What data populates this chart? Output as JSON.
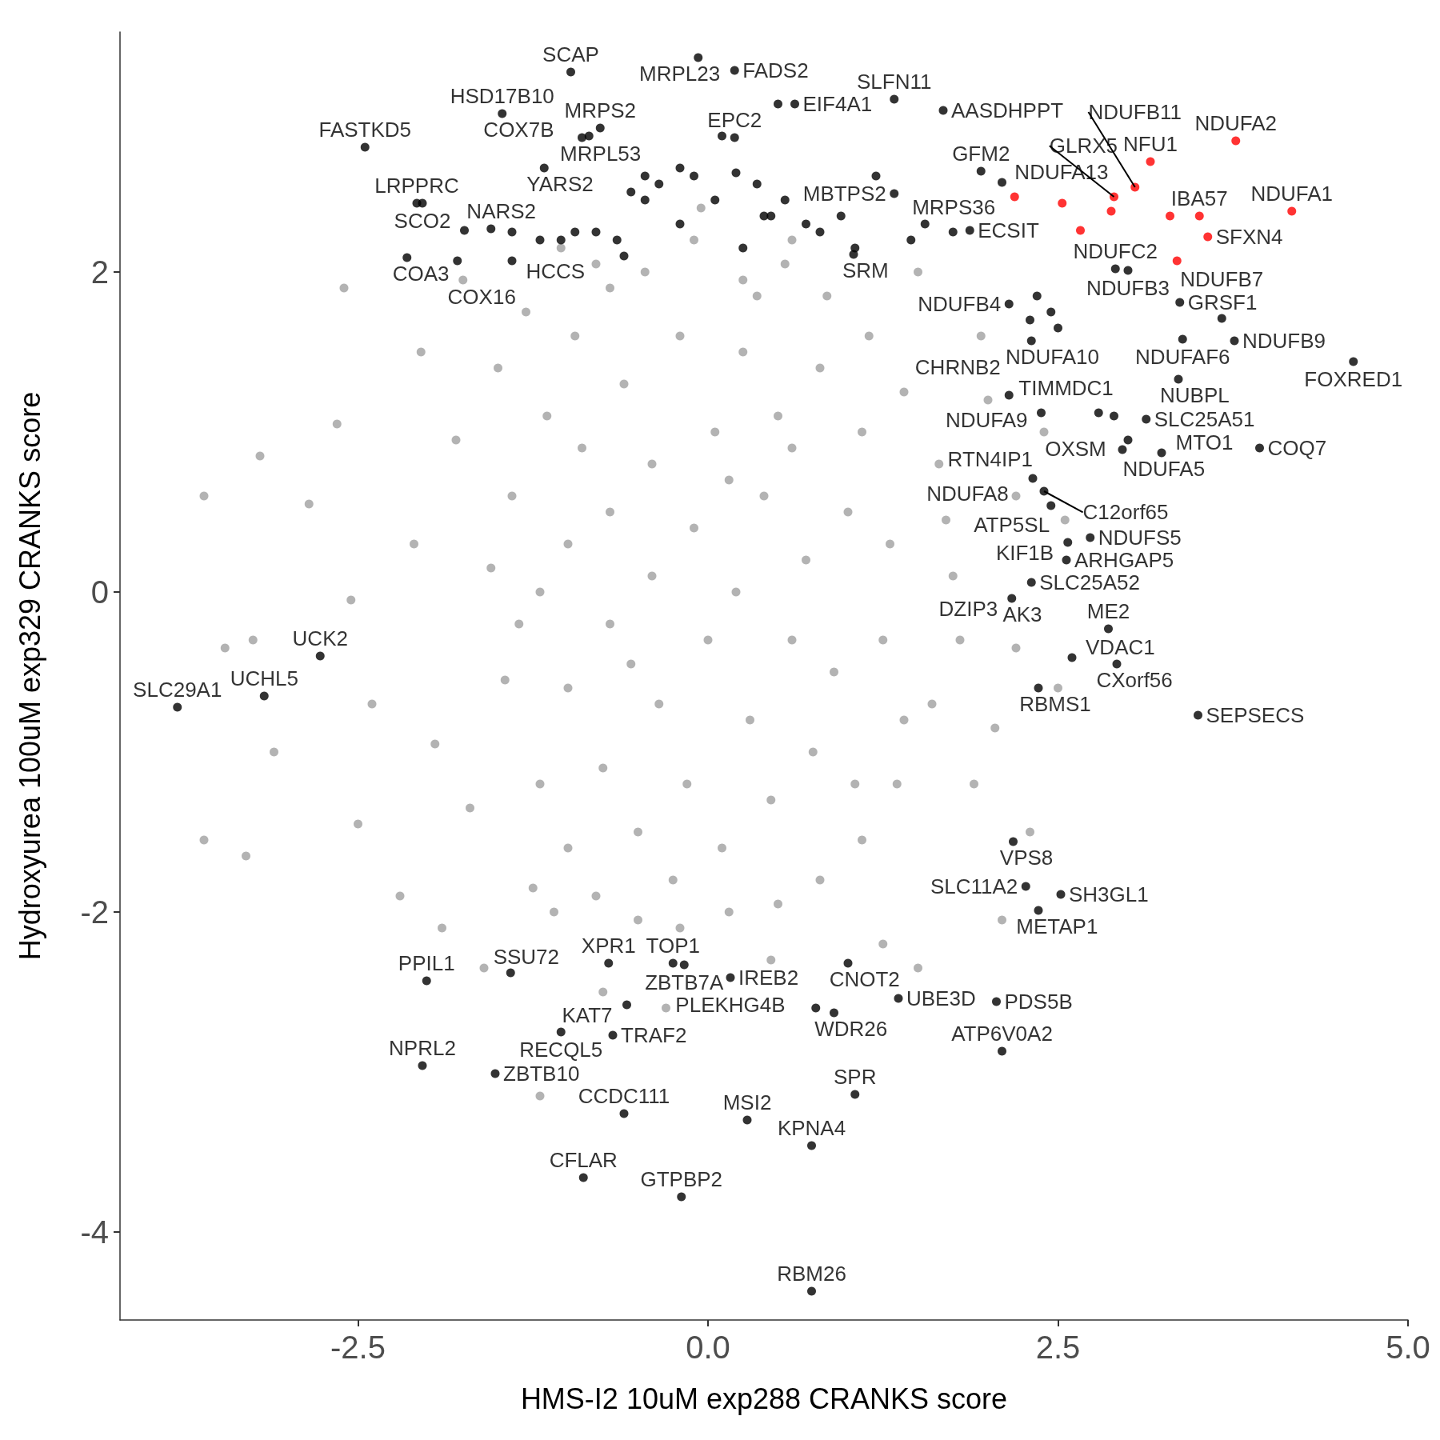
{
  "chart_data": {
    "type": "scatter",
    "xlabel": "HMS-I2 10uM exp288 CRANKS score",
    "ylabel": "Hydroxyurea 100uM exp329 CRANKS score",
    "xlim": [
      -4.2,
      5.0
    ],
    "ylim": [
      -4.55,
      3.5
    ],
    "xticks": [
      -2.5,
      {
        "value": 0,
        "label": "0.0"
      },
      2.5,
      {
        "value": 5,
        "label": "5.0"
      }
    ],
    "yticks": [
      -4,
      -2,
      0,
      2
    ],
    "grid": false,
    "marker": "circle",
    "series": [
      {
        "color": "#a0a0a0",
        "x": [
          -3.45,
          -3.25,
          -3.6,
          -3.6,
          -3.3,
          -3.1,
          -3.2,
          -2.6,
          -2.85,
          -2.65,
          -2.4,
          -2.55,
          -2.2,
          -2.5,
          -2.1,
          -2.05,
          -1.95,
          -1.9,
          -1.8,
          -1.7,
          -1.75,
          -1.6,
          -1.55,
          -1.5,
          -1.45,
          -1.2,
          -1.25,
          -1.3,
          -1.1,
          -1.05,
          -1.4,
          -1.35,
          -1.2,
          -1.15,
          -1.0,
          -0.95,
          -0.8,
          -0.7,
          -0.5,
          -0.45,
          -0.2,
          -0.1,
          0.15,
          0.25,
          0.5,
          0.55,
          0.8,
          0.85,
          1.1,
          1.15,
          1.35,
          1.4,
          1.6,
          1.65,
          1.75,
          1.8,
          1.7,
          -1.0,
          -1.0,
          -0.9,
          -0.75,
          -0.7,
          -0.7,
          -0.6,
          -0.5,
          -0.4,
          -0.4,
          -0.35,
          -0.2,
          -0.15,
          -0.1,
          0.0,
          0.05,
          0.1,
          0.2,
          0.25,
          0.3,
          0.4,
          0.45,
          0.5,
          0.6,
          0.7,
          0.75,
          0.8,
          0.9,
          1.0,
          1.05,
          1.1,
          1.25,
          1.3,
          1.4,
          -1.2,
          -0.55,
          0.15,
          0.6,
          -0.25,
          0.35,
          1.9,
          2.05,
          2.0,
          2.1,
          1.95,
          2.4,
          2.3,
          1.5,
          1.25,
          0.45,
          -0.3,
          -0.75,
          2.55,
          2.2,
          -0.05,
          -0.8,
          0.6,
          1.5,
          2.2,
          2.5
        ],
        "values": [
          -0.35,
          -0.3,
          0.6,
          -1.55,
          -1.65,
          -1.0,
          0.85,
          1.9,
          0.55,
          1.05,
          -0.7,
          -0.05,
          -1.9,
          -1.45,
          0.3,
          1.5,
          -0.95,
          -2.1,
          0.95,
          -1.35,
          1.95,
          -2.35,
          0.15,
          1.4,
          -0.55,
          -3.15,
          -1.85,
          1.75,
          -2.0,
          2.15,
          0.6,
          -0.2,
          -1.2,
          1.1,
          -1.6,
          1.6,
          -1.9,
          1.9,
          -2.05,
          2.0,
          -2.1,
          2.2,
          -2.0,
          1.95,
          -1.95,
          2.05,
          -1.8,
          1.85,
          -1.55,
          1.6,
          -1.2,
          1.25,
          -0.7,
          0.8,
          0.1,
          -0.3,
          0.45,
          0.3,
          -0.6,
          0.9,
          -1.1,
          0.5,
          -0.2,
          1.3,
          -1.5,
          0.1,
          0.8,
          -0.7,
          1.6,
          -1.2,
          0.4,
          -0.3,
          1.0,
          -1.6,
          0.0,
          1.5,
          -0.8,
          0.6,
          -1.3,
          1.1,
          -0.3,
          0.2,
          -1.0,
          1.4,
          -0.5,
          0.5,
          -1.2,
          1.0,
          -0.3,
          0.3,
          -0.8,
          0.0,
          -0.45,
          0.7,
          0.9,
          -1.8,
          1.85,
          -1.2,
          -0.85,
          1.2,
          -2.05,
          1.6,
          1.0,
          -1.5,
          -2.35,
          -2.2,
          -2.3,
          -2.6,
          -2.5,
          0.45,
          0.6,
          2.4,
          2.05,
          2.2,
          2.0,
          -0.35,
          -0.6
        ]
      },
      {
        "color": "#000000",
        "x": [
          -3.79,
          -3.17,
          -2.77,
          -2.45,
          -2.08,
          -2.04,
          -2.15,
          -1.79,
          -1.74,
          -1.4,
          -1.47,
          -0.98,
          -0.07,
          0.19,
          -0.9,
          -1.17,
          -0.77,
          0.62,
          1.33,
          0.19,
          1.95,
          1.68,
          2.1,
          1.33,
          1.87,
          1.04,
          2.15,
          2.91,
          3.0,
          3.37,
          3.67,
          3.39,
          3.76,
          4.61,
          3.36,
          2.38,
          2.79,
          2.31,
          2.15,
          2.96,
          3.24,
          3.94,
          2.32,
          2.4,
          2.45,
          2.73,
          2.57,
          2.56,
          2.31,
          2.17,
          2.86,
          2.6,
          2.92,
          2.36,
          3.5,
          2.18,
          2.27,
          2.52,
          2.36,
          -0.25,
          -0.17,
          -0.71,
          1.0,
          0.16,
          -2.01,
          -1.41,
          -0.58,
          1.36,
          2.06,
          -1.05,
          -0.68,
          0.77,
          0.9,
          -2.04,
          -1.52,
          2.1,
          -0.6,
          1.05,
          0.74,
          0.28,
          -0.89,
          -0.19,
          0.74,
          -1.55,
          -1.4,
          -1.2,
          -1.05,
          -0.95,
          -0.8,
          -0.65,
          -0.55,
          -0.45,
          -0.35,
          -0.2,
          -0.1,
          0.05,
          0.2,
          0.35,
          0.45,
          0.55,
          0.7,
          0.8,
          0.95,
          1.05,
          1.2,
          1.45,
          1.55,
          1.75,
          -0.85,
          -0.45,
          0.1,
          0.5,
          -0.2,
          0.25,
          -0.6,
          0.4,
          2.35,
          2.45,
          2.5,
          2.3,
          2.9,
          3.0,
          3.13
        ],
        "values": [
          -0.72,
          -0.65,
          -0.4,
          2.78,
          2.43,
          2.43,
          2.09,
          2.07,
          2.26,
          2.07,
          2.99,
          3.25,
          3.34,
          3.26,
          2.84,
          2.65,
          2.9,
          3.05,
          3.08,
          2.84,
          2.63,
          3.01,
          2.56,
          2.49,
          2.26,
          2.11,
          1.8,
          2.02,
          2.01,
          1.81,
          1.71,
          1.58,
          1.57,
          1.44,
          1.33,
          1.12,
          1.12,
          1.57,
          1.23,
          0.89,
          0.87,
          0.9,
          0.71,
          0.63,
          0.54,
          0.34,
          0.31,
          0.2,
          0.06,
          -0.04,
          -0.23,
          -0.41,
          -0.45,
          -0.6,
          -0.77,
          -1.56,
          -1.84,
          -1.89,
          -1.99,
          -2.32,
          -2.33,
          -2.32,
          -2.32,
          -2.41,
          -2.43,
          -2.38,
          -2.58,
          -2.54,
          -2.56,
          -2.75,
          -2.77,
          -2.6,
          -2.63,
          -2.96,
          -3.01,
          -2.87,
          -3.26,
          -3.14,
          -3.46,
          -3.3,
          -3.66,
          -3.78,
          -4.37,
          2.27,
          2.25,
          2.2,
          2.2,
          2.25,
          2.25,
          2.2,
          2.5,
          2.6,
          2.55,
          2.65,
          2.6,
          2.45,
          2.62,
          2.55,
          2.35,
          2.45,
          2.3,
          2.25,
          2.35,
          2.15,
          2.6,
          2.2,
          2.3,
          2.25,
          2.85,
          2.45,
          2.85,
          3.05,
          2.3,
          2.15,
          2.1,
          2.35,
          1.85,
          1.75,
          1.65,
          1.7,
          1.1,
          0.95,
          1.08
        ]
      },
      {
        "color": "#ff0000",
        "x": [
          2.19,
          2.53,
          2.66,
          2.88,
          2.9,
          3.05,
          3.16,
          3.3,
          3.35,
          3.51,
          3.57,
          3.77,
          4.17
        ],
        "values": [
          2.47,
          2.43,
          2.26,
          2.38,
          2.47,
          2.53,
          2.69,
          2.35,
          2.07,
          2.35,
          2.22,
          2.82,
          2.38
        ]
      }
    ],
    "annotations": [
      {
        "text": "SLC29A1",
        "x": -3.79,
        "y": -0.72
      },
      {
        "text": "UCHL5",
        "x": -3.17,
        "y": -0.65
      },
      {
        "text": "UCK2",
        "x": -2.77,
        "y": -0.4
      },
      {
        "text": "FASTKD5",
        "x": -2.45,
        "y": 2.78
      },
      {
        "text": "LRPPRC",
        "x": -2.08,
        "y": 2.43
      },
      {
        "text": "SCO2",
        "x": -2.04,
        "y": 2.43
      },
      {
        "text": "COA3",
        "x": -2.15,
        "y": 2.09
      },
      {
        "text": "COX16",
        "x": -1.79,
        "y": 2.07
      },
      {
        "text": "NARS2",
        "x": -1.74,
        "y": 2.26
      },
      {
        "text": "HCCS",
        "x": -1.4,
        "y": 2.07
      },
      {
        "text": "HSD17B10",
        "x": -1.47,
        "y": 2.99
      },
      {
        "text": "COX7B",
        "x": -1.47,
        "y": 2.99
      },
      {
        "text": "SCAP",
        "x": -0.98,
        "y": 3.25
      },
      {
        "text": "MRPL23",
        "x": -0.07,
        "y": 3.34
      },
      {
        "text": "FADS2",
        "x": 0.19,
        "y": 3.26
      },
      {
        "text": "MRPL53",
        "x": -0.9,
        "y": 2.84
      },
      {
        "text": "YARS2",
        "x": -1.17,
        "y": 2.65
      },
      {
        "text": "MRPS2",
        "x": -0.77,
        "y": 2.9
      },
      {
        "text": "EIF4A1",
        "x": 0.62,
        "y": 3.05
      },
      {
        "text": "SLFN11",
        "x": 1.33,
        "y": 3.08
      },
      {
        "text": "EPC2",
        "x": 0.19,
        "y": 2.84
      },
      {
        "text": "GFM2",
        "x": 1.95,
        "y": 2.63
      },
      {
        "text": "MRPS36",
        "x": 1.95,
        "y": 2.63
      },
      {
        "text": "AASDHPPT",
        "x": 1.68,
        "y": 3.01
      },
      {
        "text": "NDUFA13",
        "x": 2.1,
        "y": 2.56
      },
      {
        "text": "MBTPS2",
        "x": 1.33,
        "y": 2.49
      },
      {
        "text": "ECSIT",
        "x": 1.87,
        "y": 2.26
      },
      {
        "text": "SRM",
        "x": 1.04,
        "y": 2.11
      },
      {
        "text": "NDUFB4",
        "x": 2.15,
        "y": 1.8
      },
      {
        "text": "NDUFC2",
        "x": 2.91,
        "y": 2.02
      },
      {
        "text": "NDUFB3",
        "x": 3.0,
        "y": 2.01
      },
      {
        "text": "GRSF1",
        "x": 3.37,
        "y": 1.81
      },
      {
        "text": "NDUFB7",
        "x": 3.67,
        "y": 1.71
      },
      {
        "text": "NDUFAF6",
        "x": 3.39,
        "y": 1.58
      },
      {
        "text": "NDUFB9",
        "x": 3.76,
        "y": 1.57
      },
      {
        "text": "FOXRED1",
        "x": 4.61,
        "y": 1.44
      },
      {
        "text": "NUBPL",
        "x": 3.36,
        "y": 1.33
      },
      {
        "text": "TIMMDC1",
        "x": 2.38,
        "y": 1.12
      },
      {
        "text": "OXSM",
        "x": 2.79,
        "y": 1.12
      },
      {
        "text": "NDUFA10",
        "x": 2.31,
        "y": 1.57
      },
      {
        "text": "NDUFA9",
        "x": 2.15,
        "y": 1.23
      },
      {
        "text": "CHRNB2",
        "x": 2.15,
        "y": 1.23
      },
      {
        "text": "NDUFA5",
        "x": 2.96,
        "y": 0.89
      },
      {
        "text": "SLC25A51",
        "x": 3.13,
        "y": 1.08
      },
      {
        "text": "MTO1",
        "x": 3.24,
        "y": 0.87
      },
      {
        "text": "COQ7",
        "x": 3.94,
        "y": 0.9
      },
      {
        "text": "RTN4IP1",
        "x": 2.32,
        "y": 0.71
      },
      {
        "text": "NDUFA8",
        "x": 2.32,
        "y": 0.71
      },
      {
        "text": "C12orf65",
        "x": 2.4,
        "y": 0.63
      },
      {
        "text": "ATP5SL",
        "x": 2.45,
        "y": 0.54
      },
      {
        "text": "NDUFS5",
        "x": 2.73,
        "y": 0.34
      },
      {
        "text": "KIF1B",
        "x": 2.57,
        "y": 0.31
      },
      {
        "text": "ARHGAP5",
        "x": 2.56,
        "y": 0.2
      },
      {
        "text": "SLC25A52",
        "x": 2.31,
        "y": 0.06
      },
      {
        "text": "AK3",
        "x": 2.17,
        "y": -0.04
      },
      {
        "text": "DZIP3",
        "x": 2.17,
        "y": -0.04
      },
      {
        "text": "ME2",
        "x": 2.86,
        "y": -0.23
      },
      {
        "text": "VDAC1",
        "x": 2.6,
        "y": -0.41
      },
      {
        "text": "CXorf56",
        "x": 2.92,
        "y": -0.45
      },
      {
        "text": "RBMS1",
        "x": 2.36,
        "y": -0.6
      },
      {
        "text": "SEPSECS",
        "x": 3.5,
        "y": -0.77
      },
      {
        "text": "VPS8",
        "x": 2.18,
        "y": -1.56
      },
      {
        "text": "SLC11A2",
        "x": 2.27,
        "y": -1.84
      },
      {
        "text": "SH3GL1",
        "x": 2.52,
        "y": -1.89
      },
      {
        "text": "METAP1",
        "x": 2.36,
        "y": -1.99
      },
      {
        "text": "TOP1",
        "x": -0.25,
        "y": -2.32
      },
      {
        "text": "ZBTB7A",
        "x": -0.17,
        "y": -2.33
      },
      {
        "text": "XPR1",
        "x": -0.71,
        "y": -2.32
      },
      {
        "text": "CNOT2",
        "x": 1.0,
        "y": -2.32
      },
      {
        "text": "IREB2",
        "x": 0.16,
        "y": -2.41
      },
      {
        "text": "PLEKHG4B",
        "x": 0.16,
        "y": -2.41
      },
      {
        "text": "PPIL1",
        "x": -2.01,
        "y": -2.43
      },
      {
        "text": "SSU72",
        "x": -1.41,
        "y": -2.38
      },
      {
        "text": "KAT7",
        "x": -0.58,
        "y": -2.58
      },
      {
        "text": "UBE3D",
        "x": 1.36,
        "y": -2.54
      },
      {
        "text": "PDS5B",
        "x": 2.06,
        "y": -2.56
      },
      {
        "text": "RECQL5",
        "x": -1.05,
        "y": -2.75
      },
      {
        "text": "WDR26",
        "x": 0.9,
        "y": -2.63
      },
      {
        "text": "NPRL2",
        "x": -2.04,
        "y": -2.96
      },
      {
        "text": "ZBTB10",
        "x": -1.52,
        "y": -3.01
      },
      {
        "text": "ATP6V0A2",
        "x": 2.1,
        "y": -2.87
      },
      {
        "text": "TRAF2",
        "x": -0.68,
        "y": -2.77
      },
      {
        "text": "CCDC111",
        "x": -0.6,
        "y": -3.26
      },
      {
        "text": "SPR",
        "x": 1.05,
        "y": -3.14
      },
      {
        "text": "KPNA4",
        "x": 0.74,
        "y": -3.46
      },
      {
        "text": "MSI2",
        "x": 0.28,
        "y": -3.3
      },
      {
        "text": "CFLAR",
        "x": -0.89,
        "y": -3.66
      },
      {
        "text": "GTPBP2",
        "x": -0.19,
        "y": -3.78
      },
      {
        "text": "RBM26",
        "x": 0.74,
        "y": -4.37
      },
      {
        "text": "NDUFA2",
        "x": 3.77,
        "y": 2.82
      },
      {
        "text": "NDUFA1",
        "x": 4.17,
        "y": 2.38
      },
      {
        "text": "NFU1",
        "x": 3.16,
        "y": 2.69
      },
      {
        "text": "IBA57",
        "x": 3.51,
        "y": 2.35
      },
      {
        "text": "SFXN4",
        "x": 3.57,
        "y": 2.22
      },
      {
        "text": "GLRX5",
        "x": 2.9,
        "y": 2.47
      },
      {
        "text": "NDUFB11",
        "x": 3.05,
        "y": 2.53
      }
    ]
  }
}
